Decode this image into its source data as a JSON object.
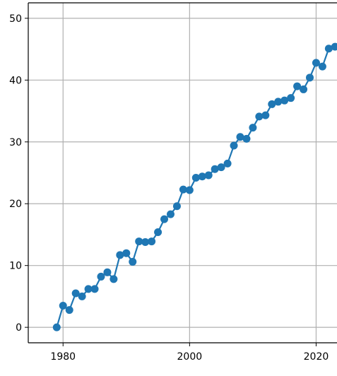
{
  "chart_data": {
    "type": "line",
    "title": "",
    "xlabel": "",
    "ylabel": "",
    "xlim": [
      1974.5,
      2023.3
    ],
    "ylim": [
      -2.5,
      52.5
    ],
    "x_ticks": [
      1980,
      2000,
      2020
    ],
    "y_ticks": [
      0,
      10,
      20,
      30,
      40,
      50
    ],
    "grid": true,
    "markers": true,
    "colors": {
      "series": "#1f77b4",
      "grid": "#b0b0b0",
      "axis": "#000000"
    },
    "series": [
      {
        "x": [
          1979,
          1980,
          1981,
          1982,
          1983,
          1984,
          1985,
          1986,
          1987,
          1988,
          1989,
          1990,
          1991,
          1992,
          1993,
          1994,
          1995,
          1996,
          1997,
          1998,
          1999,
          2000,
          2001,
          2002,
          2003,
          2004,
          2005,
          2006,
          2007,
          2008,
          2009,
          2010,
          2011,
          2012,
          2013,
          2014,
          2015,
          2016,
          2017,
          2018,
          2019,
          2020,
          2021,
          2022,
          2023
        ],
        "values": [
          0.0,
          3.5,
          2.8,
          5.5,
          5.0,
          6.2,
          6.2,
          8.2,
          8.9,
          7.8,
          11.7,
          12.0,
          10.6,
          13.9,
          13.8,
          13.9,
          15.4,
          17.5,
          18.3,
          19.6,
          22.3,
          22.2,
          24.2,
          24.4,
          24.6,
          25.6,
          25.9,
          26.5,
          29.4,
          30.8,
          30.5,
          32.3,
          34.1,
          34.3,
          36.1,
          36.5,
          36.7,
          37.1,
          39.0,
          38.5,
          40.4,
          42.8,
          42.2,
          45.1,
          45.4
        ]
      }
    ]
  }
}
